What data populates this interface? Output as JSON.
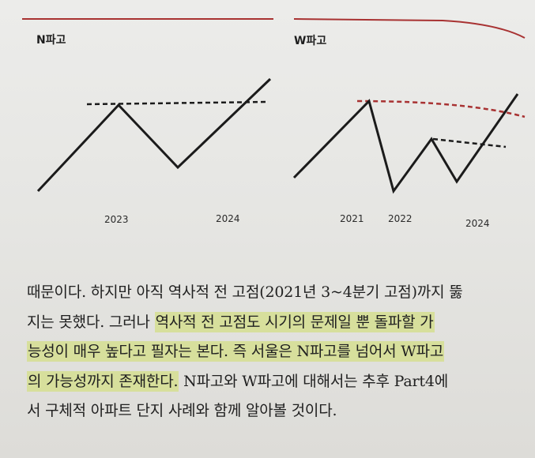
{
  "panels": {
    "n_wave": {
      "title": "N파고",
      "years": [
        "2023",
        "2024"
      ]
    },
    "w_wave": {
      "title": "W파고",
      "years": [
        "2021",
        "2022",
        "2024"
      ]
    }
  },
  "colors": {
    "rule": "#a83232",
    "price_line": "#1b1b1b",
    "resistance_black": "#1b1b1b",
    "resistance_red": "#a83232",
    "highlight": "#d7df9c"
  },
  "body_text": {
    "line1": "때문이다. 하지만 아직 역사적 전 고점(2021년 3~4분기 고점)까지 뚫",
    "line2_plain": "지는 못했다. 그러나 ",
    "line2_hl": "역사적 전 고점도 시기의 문제일 뿐 돌파할 가",
    "line3_hl": "능성이 매우 높다고 필자는 본다. 즉 서울은 N파고를 넘어서 W파고",
    "line4_hl": "의 가능성까지 존재한다.",
    "line4_plain": " N파고와 W파고에 대해서는 추후 Part4에",
    "line5": "서 구체적 아파트 단지 사례와 함께 알아볼 것이다."
  }
}
